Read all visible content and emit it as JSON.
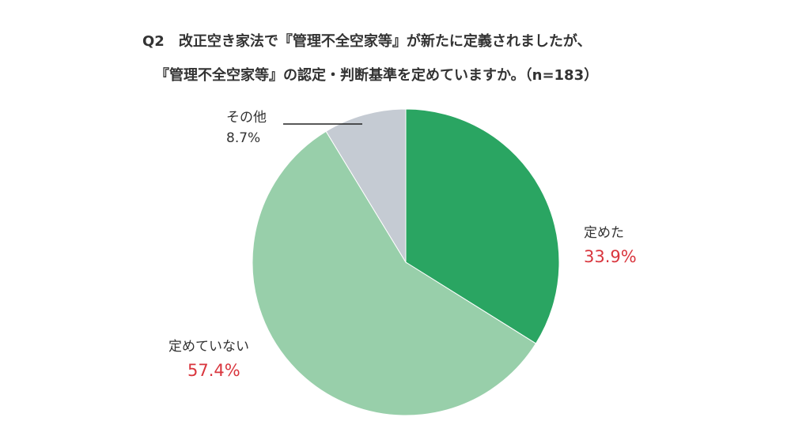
{
  "chart_data": {
    "type": "pie",
    "title": "Q2　改正空き家法で『管理不全空家等』が新たに定義されましたが、",
    "subtitle": "『管理不全空家等』の認定・判断基準を定めていますか。（n=183）",
    "categories": [
      "定めた",
      "定めていない",
      "その他"
    ],
    "values": [
      33.9,
      57.4,
      8.7
    ],
    "value_labels": [
      "33.9%",
      "57.4%",
      "8.7%"
    ],
    "colors": [
      "#2aa562",
      "#98cfaa",
      "#c5cbd3"
    ],
    "start_angle": "12 o'clock",
    "direction": "clockwise",
    "legend": "none"
  }
}
